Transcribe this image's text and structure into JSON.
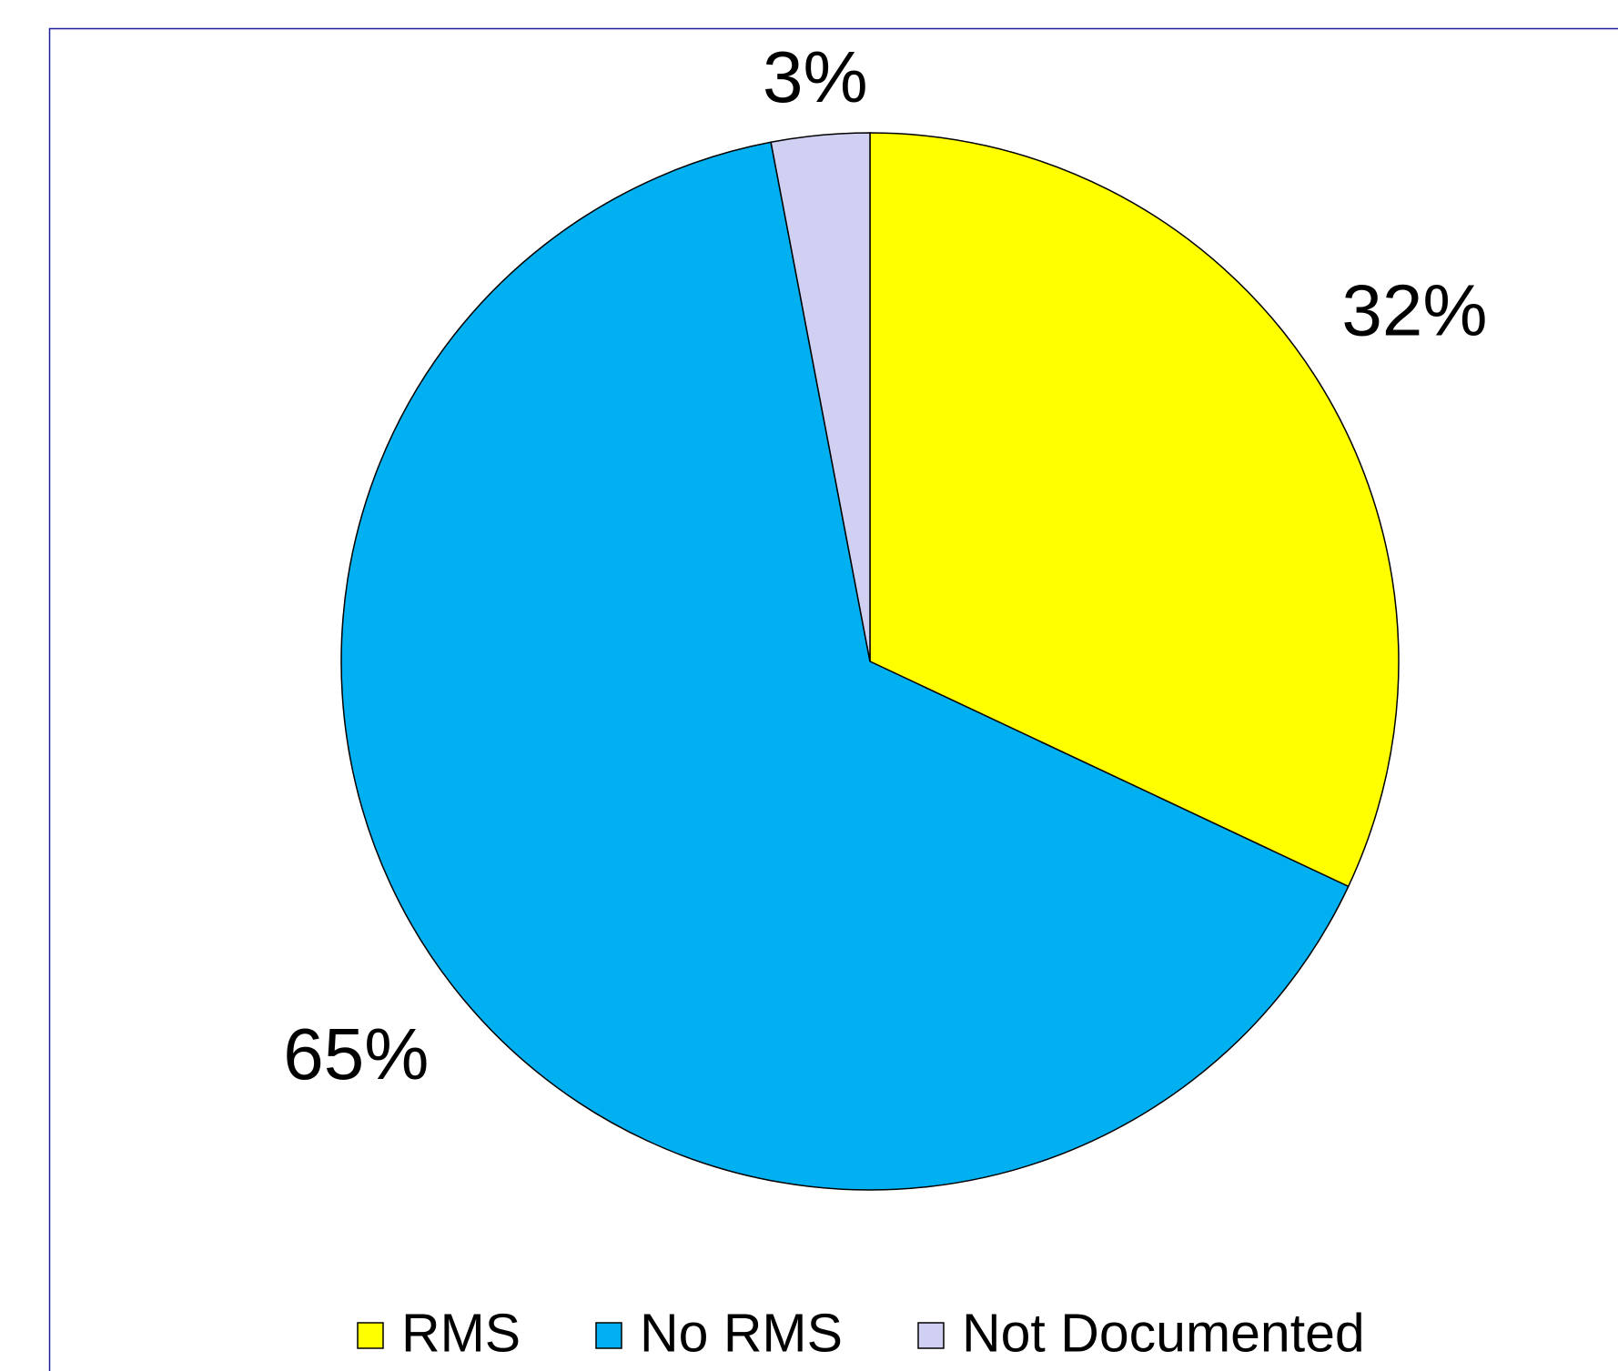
{
  "chart_data": {
    "type": "pie",
    "categories": [
      "RMS",
      "No RMS",
      "Not Documented"
    ],
    "values": [
      32,
      65,
      3
    ],
    "value_labels": [
      "32%",
      "65%",
      "3%"
    ],
    "colors": [
      "#ffff00",
      "#00b0f0",
      "#d0d0f2"
    ],
    "legend": "bottom"
  }
}
